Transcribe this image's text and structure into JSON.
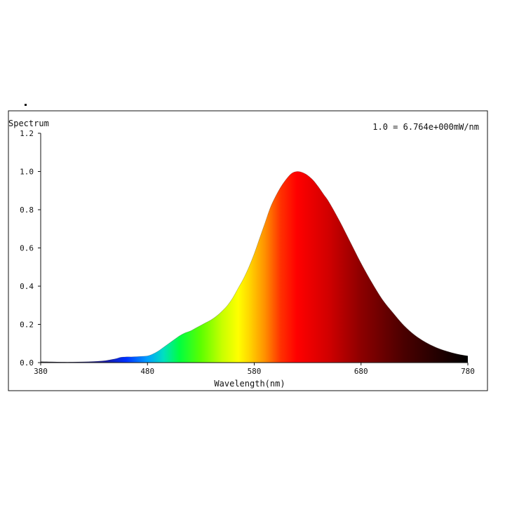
{
  "panel": {
    "title": "Spectrum",
    "scale_note": "1.0 = 6.764e+000mW/nm"
  },
  "chart_data": {
    "type": "area",
    "title": "",
    "xlabel": "Wavelength(nm)",
    "ylabel": "",
    "xlim": [
      380,
      780
    ],
    "ylim": [
      0,
      1.2
    ],
    "x_ticks": [
      380,
      480,
      580,
      680,
      780
    ],
    "y_ticks": [
      0.0,
      0.2,
      0.4,
      0.6,
      0.8,
      1.0,
      1.2
    ],
    "grid": false,
    "fill": "wavelength-colored spectrum",
    "series": [
      {
        "x": [
          380,
          390,
          400,
          410,
          420,
          430,
          440,
          450,
          455,
          460,
          465,
          470,
          475,
          480,
          485,
          490,
          495,
          500,
          505,
          510,
          515,
          520,
          525,
          530,
          535,
          540,
          545,
          550,
          555,
          560,
          565,
          570,
          575,
          580,
          585,
          590,
          595,
          600,
          605,
          610,
          615,
          620,
          625,
          630,
          635,
          640,
          645,
          650,
          660,
          670,
          680,
          690,
          700,
          710,
          720,
          730,
          740,
          750,
          760,
          770,
          780
        ],
        "values": [
          0.005,
          0.004,
          0.003,
          0.003,
          0.004,
          0.006,
          0.01,
          0.02,
          0.028,
          0.03,
          0.03,
          0.031,
          0.033,
          0.035,
          0.045,
          0.06,
          0.08,
          0.1,
          0.12,
          0.14,
          0.155,
          0.165,
          0.18,
          0.195,
          0.21,
          0.225,
          0.245,
          0.27,
          0.3,
          0.34,
          0.39,
          0.44,
          0.5,
          0.57,
          0.65,
          0.73,
          0.81,
          0.87,
          0.92,
          0.96,
          0.99,
          1.0,
          0.995,
          0.98,
          0.955,
          0.92,
          0.88,
          0.84,
          0.74,
          0.63,
          0.52,
          0.42,
          0.33,
          0.26,
          0.195,
          0.145,
          0.108,
          0.08,
          0.06,
          0.045,
          0.035
        ]
      }
    ]
  }
}
